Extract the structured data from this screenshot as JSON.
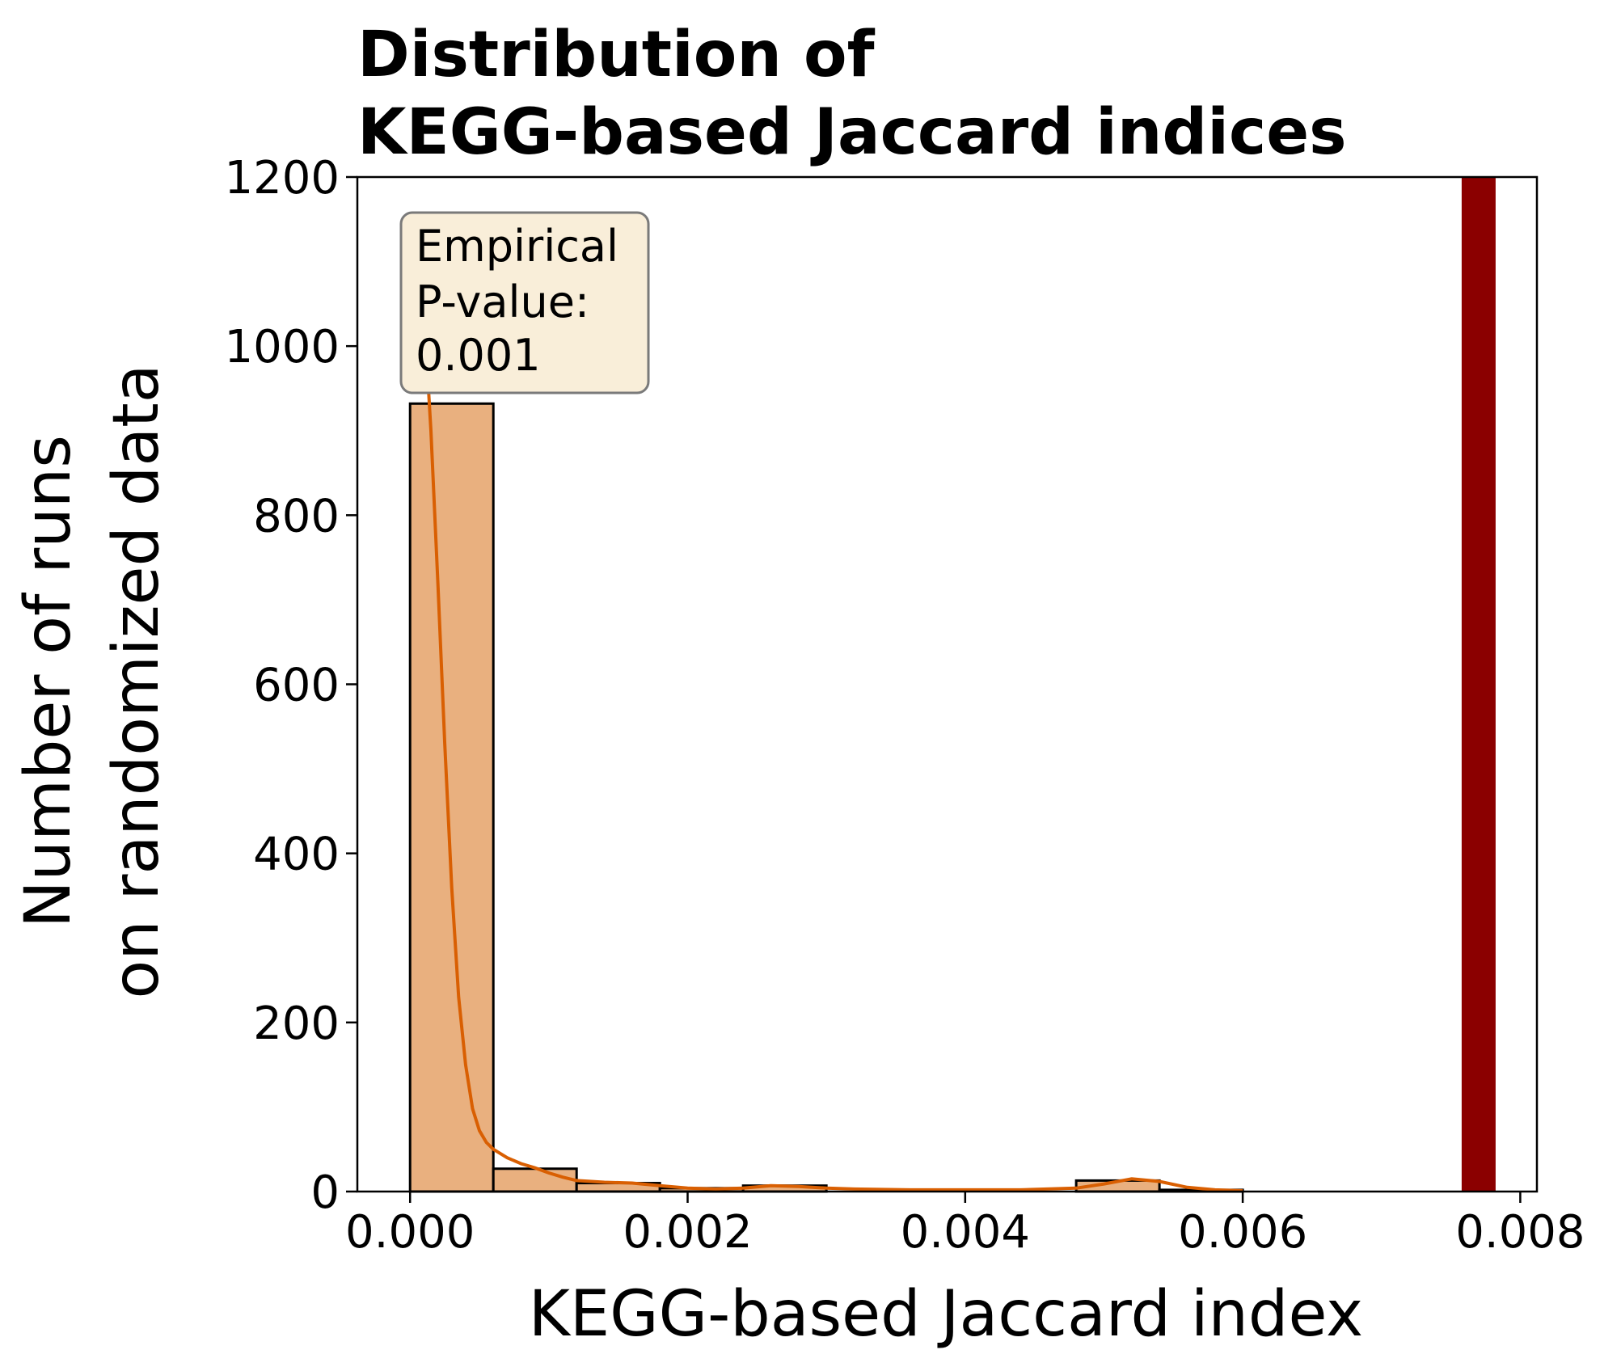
{
  "chart_data": {
    "type": "bar",
    "title_lines": [
      "Distribution of",
      "KEGG-based Jaccard indices"
    ],
    "xlabel": "KEGG-based Jaccard index",
    "ylabel_lines": [
      "Number of runs",
      "on randomized data"
    ],
    "xlim": [
      -0.00038,
      0.00812
    ],
    "ylim": [
      0,
      1200
    ],
    "x_ticks": [
      {
        "value": 0.0,
        "label": "0.000"
      },
      {
        "value": 0.002,
        "label": "0.002"
      },
      {
        "value": 0.004,
        "label": "0.004"
      },
      {
        "value": 0.006,
        "label": "0.006"
      },
      {
        "value": 0.008,
        "label": "0.008"
      }
    ],
    "y_ticks": [
      {
        "value": 0,
        "label": "0"
      },
      {
        "value": 200,
        "label": "200"
      },
      {
        "value": 400,
        "label": "400"
      },
      {
        "value": 600,
        "label": "600"
      },
      {
        "value": 800,
        "label": "800"
      },
      {
        "value": 1000,
        "label": "1000"
      },
      {
        "value": 1200,
        "label": "1200"
      }
    ],
    "bins": [
      {
        "x0": 0.0,
        "x1": 0.0006,
        "count": 932
      },
      {
        "x0": 0.0006,
        "x1": 0.0012,
        "count": 27
      },
      {
        "x0": 0.0012,
        "x1": 0.0018,
        "count": 10
      },
      {
        "x0": 0.0018,
        "x1": 0.0024,
        "count": 4
      },
      {
        "x0": 0.0024,
        "x1": 0.003,
        "count": 7
      },
      {
        "x0": 0.003,
        "x1": 0.0036,
        "count": 0
      },
      {
        "x0": 0.0036,
        "x1": 0.0042,
        "count": 0
      },
      {
        "x0": 0.0042,
        "x1": 0.0048,
        "count": 0
      },
      {
        "x0": 0.0048,
        "x1": 0.0054,
        "count": 13
      },
      {
        "x0": 0.0054,
        "x1": 0.006,
        "count": 2
      }
    ],
    "kde": {
      "x": [
        0.0,
        5e-05,
        0.0001,
        0.00015,
        0.0002,
        0.00025,
        0.0003,
        0.00035,
        0.0004,
        0.00045,
        0.0005,
        0.00055,
        0.0006,
        0.0007,
        0.0008,
        0.0009,
        0.001,
        0.0011,
        0.0012,
        0.0014,
        0.0016,
        0.0018,
        0.002,
        0.0022,
        0.0024,
        0.0026,
        0.0028,
        0.003,
        0.0032,
        0.0036,
        0.004,
        0.0044,
        0.0048,
        0.005,
        0.0052,
        0.0054,
        0.0056,
        0.0058,
        0.006
      ],
      "y": [
        1145,
        1125,
        1040,
        900,
        720,
        530,
        360,
        230,
        150,
        98,
        72,
        58,
        50,
        40,
        33,
        28,
        22,
        17,
        13,
        11,
        10,
        7,
        4,
        3,
        4,
        7,
        6,
        4,
        3,
        2,
        2,
        2,
        4,
        9,
        15,
        12,
        5,
        2,
        1
      ]
    },
    "observed_value": 0.0077,
    "annotation_lines": [
      "Empirical",
      "P-value:",
      "0.001"
    ],
    "colors": {
      "bar_fill": "#e9b07f",
      "bar_edge": "#000000",
      "kde_line": "#d95f02",
      "observed_line": "#8b0000",
      "annotation_fill": "#f9eed9",
      "annotation_edge": "#7a7a7a"
    }
  }
}
